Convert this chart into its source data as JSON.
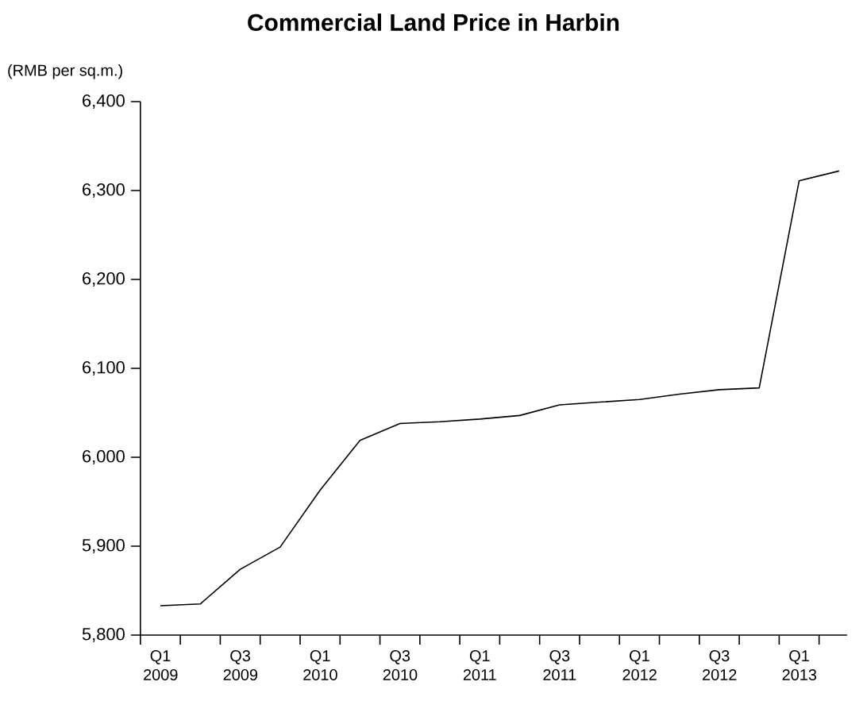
{
  "chart_data": {
    "type": "line",
    "title": "Commercial Land Price in Harbin",
    "ylabel": "(RMB per sq.m.)",
    "categories": [
      "Q1 2009",
      null,
      "Q3 2009",
      null,
      "Q1 2010",
      null,
      "Q3 2010",
      null,
      "Q1 2011",
      null,
      "Q3 2011",
      null,
      "Q1 2012",
      null,
      "Q3 2012",
      null,
      "Q1 2013",
      null
    ],
    "series": [
      {
        "color": "#000000",
        "values": [
          5833,
          5835,
          5874,
          5899,
          5963,
          6019,
          6038,
          6040,
          6043,
          6047,
          6059,
          6062,
          6065,
          6071,
          6076,
          6078,
          6311,
          6322
        ]
      }
    ],
    "ylim": [
      5800,
      6400
    ],
    "yticks": [
      {
        "value": 5800,
        "label": "5,800"
      },
      {
        "value": 5900,
        "label": "5,900"
      },
      {
        "value": 6000,
        "label": "6,000"
      },
      {
        "value": 6100,
        "label": "6,100"
      },
      {
        "value": 6200,
        "label": "6,200"
      },
      {
        "value": 6300,
        "label": "6,300"
      },
      {
        "value": 6400,
        "label": "6,400"
      }
    ],
    "grid": false,
    "marker": "none",
    "line_style": "solid"
  }
}
